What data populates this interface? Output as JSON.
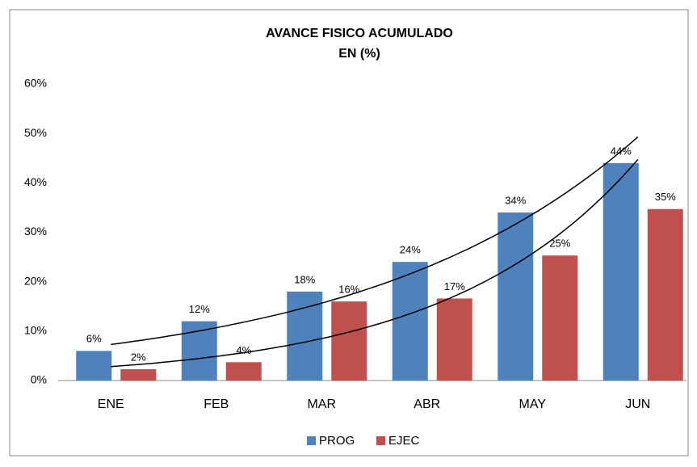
{
  "chart_data": {
    "type": "bar",
    "title": [
      "AVANCE FISICO ACUMULADO",
      "EN (%)"
    ],
    "categories": [
      "ENE",
      "FEB",
      "MAR",
      "ABR",
      "MAY",
      "JUN"
    ],
    "series": [
      {
        "name": "PROG",
        "color": "#4f81bd",
        "values": [
          6,
          12,
          18,
          24,
          34,
          44
        ],
        "value_labels": [
          "6%",
          "12%",
          "18%",
          "24%",
          "34%",
          "44%"
        ]
      },
      {
        "name": "EJEC",
        "color": "#c0504d",
        "values": [
          2.3,
          3.7,
          16,
          16.6,
          25.3,
          34.7
        ],
        "value_labels": [
          "2%",
          "4%",
          "16%",
          "17%",
          "25%",
          "35%"
        ]
      }
    ],
    "ylim": [
      0,
      60
    ],
    "yticks": [
      {
        "value": 0,
        "label": "0%"
      },
      {
        "value": 10,
        "label": "10%"
      },
      {
        "value": 20,
        "label": "20%"
      },
      {
        "value": 30,
        "label": "30%"
      },
      {
        "value": 40,
        "label": "40%"
      },
      {
        "value": 50,
        "label": "50%"
      },
      {
        "value": 60,
        "label": "60%"
      }
    ],
    "trendline": "exponential",
    "grid": false,
    "legend": "bottom"
  }
}
